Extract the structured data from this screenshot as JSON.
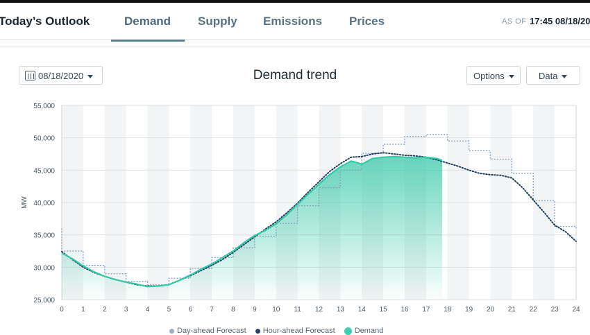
{
  "header": {
    "brand": "Today’s Outlook",
    "tabs": [
      "Demand",
      "Supply",
      "Emissions",
      "Prices"
    ],
    "active_tab": "Demand",
    "as_of_label": "AS OF",
    "as_of_value": "17:45 08/18/20"
  },
  "controls": {
    "date": "08/18/2020",
    "options_label": "Options",
    "data_label": "Data"
  },
  "legend": [
    "Day-ahead Forecast",
    "Hour-ahead Forecast",
    "Demand"
  ],
  "colors": {
    "demand": "#35c9a6",
    "hour_ahead": "#1f3f63",
    "day_ahead": "#8aa2c0",
    "tab_accent": "#5b7d90"
  },
  "chart_data": {
    "type": "line",
    "title": "Demand trend",
    "ylabel": "MW",
    "xlabel": "",
    "xlim": [
      0,
      24
    ],
    "ylim": [
      25000,
      55000
    ],
    "x_ticks": [
      0,
      1,
      2,
      3,
      4,
      5,
      6,
      7,
      8,
      9,
      10,
      11,
      12,
      13,
      14,
      15,
      16,
      17,
      18,
      19,
      20,
      21,
      22,
      23,
      24
    ],
    "y_ticks": [
      25000,
      30000,
      35000,
      40000,
      45000,
      50000,
      55000
    ],
    "y_tick_labels": [
      "25,000",
      "30,000",
      "35,000",
      "40,000",
      "45,000",
      "50,000",
      "55,000"
    ],
    "grid": true,
    "series": [
      {
        "name": "Day-ahead Forecast",
        "style": "dotted-step",
        "x": [
          0,
          1,
          2,
          3,
          4,
          5,
          6,
          7,
          8,
          9,
          10,
          11,
          12,
          13,
          14,
          15,
          16,
          17,
          18,
          19,
          20,
          21,
          22,
          23,
          24
        ],
        "y": [
          32500,
          30300,
          29000,
          27800,
          27300,
          28300,
          29800,
          31500,
          33000,
          34800,
          36800,
          39500,
          42300,
          45000,
          47600,
          49000,
          50200,
          50500,
          49500,
          48000,
          46700,
          44500,
          40300,
          36300,
          35800
        ]
      },
      {
        "name": "Hour-ahead Forecast",
        "style": "dotted",
        "x": [
          0,
          0.5,
          1,
          1.5,
          2,
          2.5,
          3,
          3.5,
          4,
          4.5,
          5,
          5.5,
          6,
          6.5,
          7,
          7.5,
          8,
          8.5,
          9,
          9.5,
          10,
          10.5,
          11,
          11.5,
          12,
          12.5,
          13,
          13.5,
          14,
          14.5,
          15,
          15.5,
          16,
          16.5,
          17,
          17.5,
          18,
          18.5,
          19,
          19.5,
          20,
          20.5,
          21,
          21.5,
          22,
          22.5,
          23,
          23.5,
          24
        ],
        "y": [
          32400,
          31200,
          30000,
          29200,
          28600,
          28100,
          27700,
          27300,
          27100,
          27100,
          27300,
          28000,
          28700,
          29500,
          30300,
          31200,
          32300,
          33500,
          34700,
          35900,
          37000,
          38400,
          39900,
          41600,
          43200,
          44800,
          46000,
          47000,
          47100,
          47500,
          47700,
          47500,
          47300,
          47200,
          47000,
          46600,
          46100,
          45600,
          45000,
          44500,
          44300,
          44200,
          43800,
          42300,
          40400,
          38500,
          36500,
          35500,
          34000
        ]
      },
      {
        "name": "Demand",
        "style": "solid-area",
        "x": [
          0,
          0.5,
          1,
          1.5,
          2,
          2.5,
          3,
          3.5,
          4,
          4.5,
          5,
          5.5,
          6,
          6.5,
          7,
          7.5,
          8,
          8.5,
          9,
          9.5,
          10,
          10.5,
          11,
          11.5,
          12,
          12.5,
          13,
          13.5,
          13.75,
          14,
          14.5,
          15,
          15.5,
          16,
          16.5,
          17,
          17.5,
          17.75
        ],
        "y": [
          32200,
          31300,
          30200,
          29300,
          28600,
          28100,
          27700,
          27400,
          27000,
          27100,
          27300,
          28000,
          28800,
          29700,
          30500,
          31500,
          32500,
          33800,
          34900,
          35700,
          36700,
          38100,
          39700,
          41300,
          42800,
          44300,
          45500,
          46400,
          46200,
          45900,
          46800,
          47000,
          47100,
          47000,
          46900,
          47000,
          46800,
          46500
        ]
      }
    ]
  }
}
